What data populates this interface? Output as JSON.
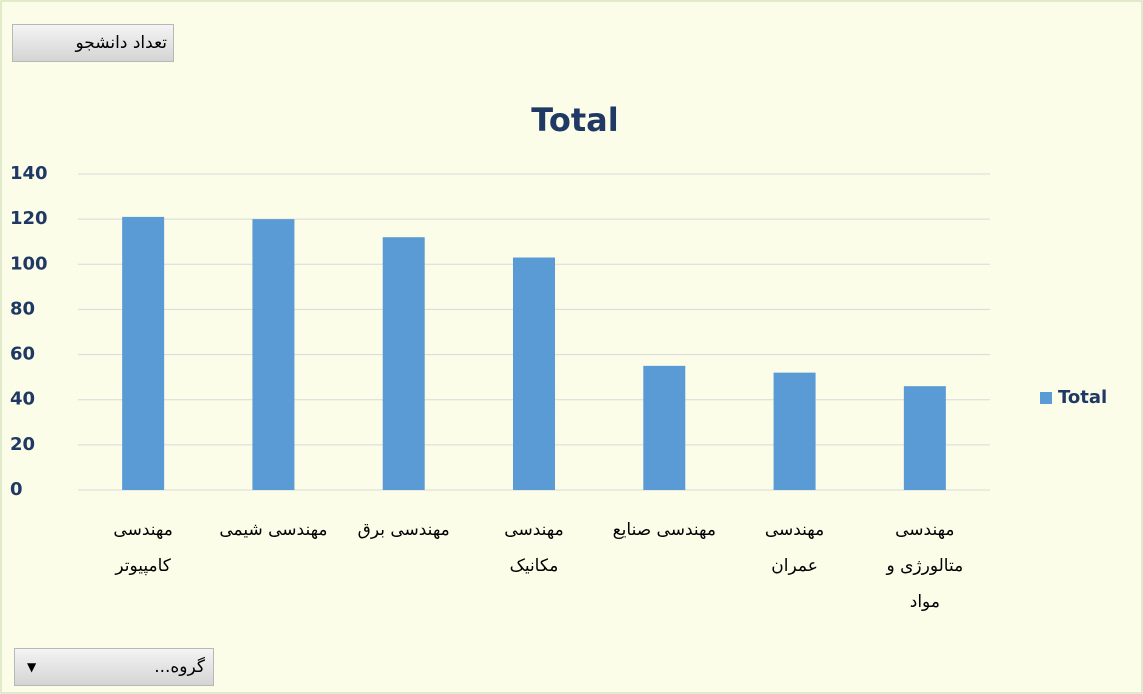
{
  "value_field": "تعداد دانشجو",
  "filter_field": "گروه...",
  "chart_data": {
    "type": "bar",
    "title": "Total",
    "categories": [
      "مهندسی کامپیوتر",
      "مهندسی شیمی",
      "مهندسی برق",
      "مهندسی مکانیک",
      "مهندسی صنایع",
      "مهندسی عمران",
      "مهندسی متالورژی و مواد"
    ],
    "series": [
      {
        "name": "Total",
        "color": "#5b9bd5",
        "values": [
          121,
          120,
          112,
          103,
          55,
          52,
          46
        ]
      }
    ],
    "ylim": [
      0,
      140
    ],
    "yticks": [
      0,
      20,
      40,
      60,
      80,
      100,
      120,
      140
    ],
    "grid": true,
    "legend": "right"
  }
}
